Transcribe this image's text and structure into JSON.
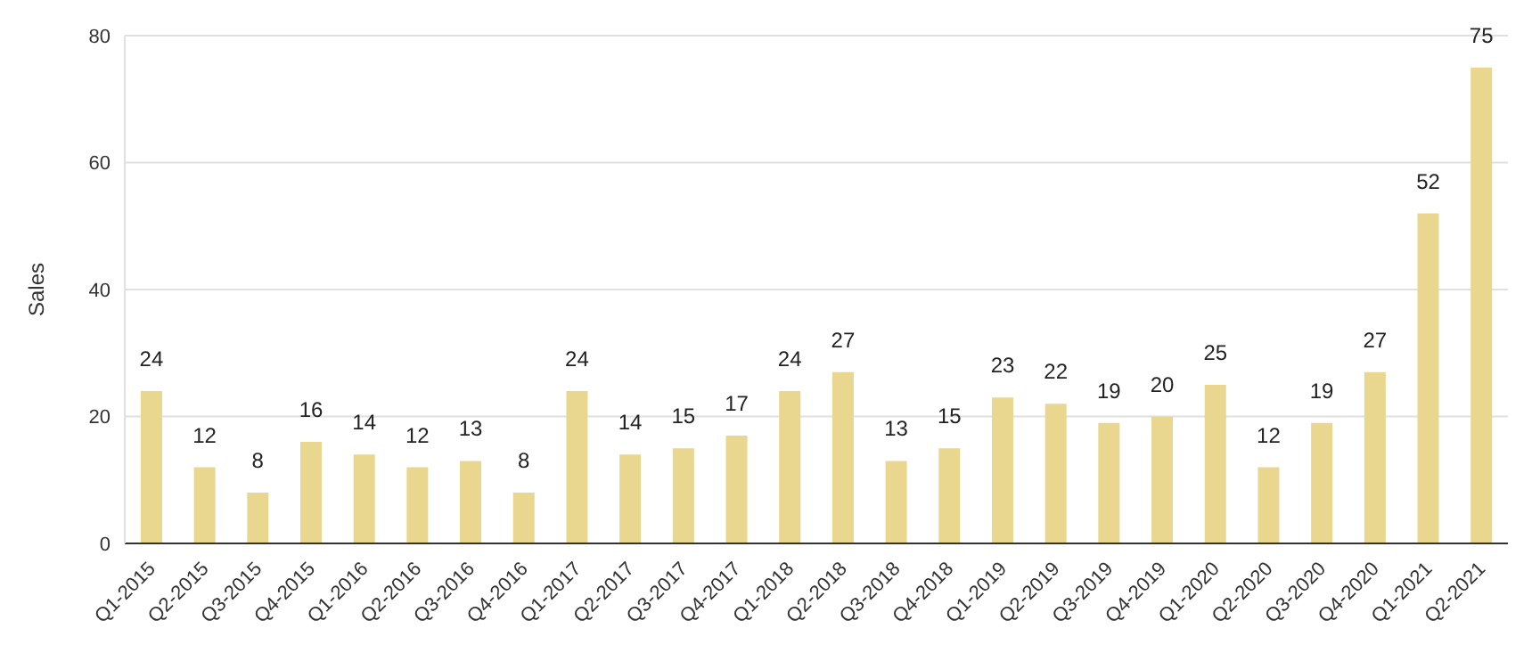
{
  "chart_data": {
    "type": "bar",
    "ylabel": "Sales",
    "categories": [
      "Q1-2015",
      "Q2-2015",
      "Q3-2015",
      "Q4-2015",
      "Q1-2016",
      "Q2-2016",
      "Q3-2016",
      "Q4-2016",
      "Q1-2017",
      "Q2-2017",
      "Q3-2017",
      "Q4-2017",
      "Q1-2018",
      "Q2-2018",
      "Q3-2018",
      "Q4-2018",
      "Q1-2019",
      "Q2-2019",
      "Q3-2019",
      "Q4-2019",
      "Q1-2020",
      "Q2-2020",
      "Q3-2020",
      "Q4-2020",
      "Q1-2021",
      "Q2-2021"
    ],
    "values": [
      24,
      12,
      8,
      16,
      14,
      12,
      13,
      8,
      24,
      14,
      15,
      17,
      24,
      27,
      13,
      15,
      23,
      22,
      19,
      20,
      25,
      12,
      19,
      27,
      52,
      75
    ],
    "color": "#e9d68f",
    "ylim": [
      0,
      80
    ],
    "yticks": [
      0,
      20,
      40,
      60,
      80
    ],
    "grid": "y",
    "data_labels": true
  }
}
